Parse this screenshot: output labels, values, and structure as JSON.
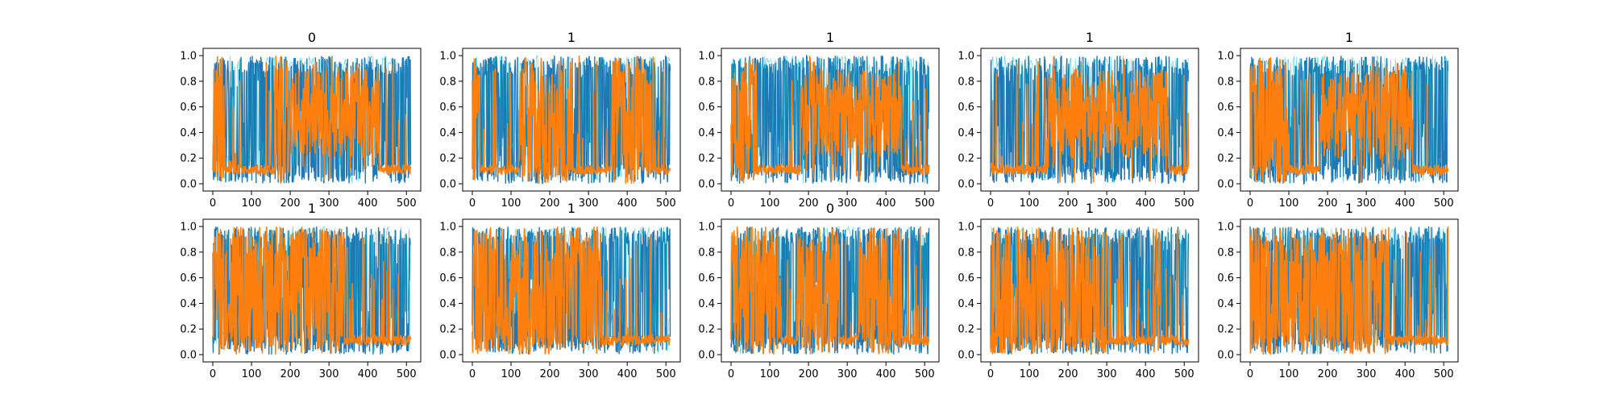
{
  "chart_data": [
    {
      "type": "line",
      "title": "0",
      "xlim": [
        0,
        512
      ],
      "ylim": [
        0,
        1
      ],
      "xticks": [
        "0",
        "100",
        "200",
        "300",
        "400",
        "500"
      ],
      "yticks": [
        "0.0",
        "0.2",
        "0.4",
        "0.6",
        "0.8",
        "1.0"
      ],
      "series": [
        {
          "color": "#1f77b4",
          "pattern": "dense_full_range"
        },
        {
          "color": "#17becf",
          "pattern": "dense_full_range"
        },
        {
          "color": "#ff7f0e",
          "pattern": "segments",
          "segments": [
            [
              0,
              30,
              "high"
            ],
            [
              30,
              160,
              "low"
            ],
            [
              160,
              200,
              "high"
            ],
            [
              200,
              430,
              "mid"
            ],
            [
              430,
              512,
              "low"
            ]
          ]
        }
      ]
    },
    {
      "type": "line",
      "title": "1",
      "xlim": [
        0,
        512
      ],
      "ylim": [
        0,
        1
      ],
      "xticks": [
        "0",
        "100",
        "200",
        "300",
        "400",
        "500"
      ],
      "yticks": [
        "0.0",
        "0.2",
        "0.4",
        "0.6",
        "0.8",
        "1.0"
      ],
      "series": [
        {
          "color": "#1f77b4",
          "pattern": "dense_full_range"
        },
        {
          "color": "#17becf",
          "pattern": "dense_full_range"
        },
        {
          "color": "#ff7f0e",
          "pattern": "segments",
          "segments": [
            [
              0,
              20,
              "high"
            ],
            [
              20,
              120,
              "low"
            ],
            [
              120,
              260,
              "high"
            ],
            [
              260,
              300,
              "low"
            ],
            [
              300,
              360,
              "low"
            ],
            [
              360,
              460,
              "high"
            ],
            [
              460,
              512,
              "low"
            ]
          ]
        }
      ]
    },
    {
      "type": "line",
      "title": "1",
      "xlim": [
        0,
        512
      ],
      "ylim": [
        0,
        1
      ],
      "xticks": [
        "0",
        "100",
        "200",
        "300",
        "400",
        "500"
      ],
      "yticks": [
        "0.0",
        "0.2",
        "0.4",
        "0.6",
        "0.8",
        "1.0"
      ],
      "series": [
        {
          "color": "#1f77b4",
          "pattern": "dense_full_range"
        },
        {
          "color": "#17becf",
          "pattern": "dense_full_range"
        },
        {
          "color": "#ff7f0e",
          "pattern": "segments",
          "segments": [
            [
              0,
              60,
              "high"
            ],
            [
              60,
              180,
              "low"
            ],
            [
              180,
              440,
              "mid"
            ],
            [
              440,
              512,
              "low"
            ]
          ]
        }
      ]
    },
    {
      "type": "line",
      "title": "1",
      "xlim": [
        0,
        512
      ],
      "ylim": [
        0,
        1
      ],
      "xticks": [
        "0",
        "100",
        "200",
        "300",
        "400",
        "500"
      ],
      "yticks": [
        "0.0",
        "0.2",
        "0.4",
        "0.6",
        "0.8",
        "1.0"
      ],
      "series": [
        {
          "color": "#1f77b4",
          "pattern": "dense_full_range"
        },
        {
          "color": "#17becf",
          "pattern": "dense_full_range"
        },
        {
          "color": "#ff7f0e",
          "pattern": "segments",
          "segments": [
            [
              0,
              150,
              "low"
            ],
            [
              150,
              460,
              "mid"
            ],
            [
              460,
              512,
              "low"
            ]
          ]
        }
      ]
    },
    {
      "type": "line",
      "title": "1",
      "xlim": [
        0,
        512
      ],
      "ylim": [
        0,
        1
      ],
      "xticks": [
        "0",
        "100",
        "200",
        "300",
        "400",
        "500"
      ],
      "yticks": [
        "0.0",
        "0.2",
        "0.4",
        "0.6",
        "0.8",
        "1.0"
      ],
      "series": [
        {
          "color": "#1f77b4",
          "pattern": "dense_full_range"
        },
        {
          "color": "#17becf",
          "pattern": "dense_full_range"
        },
        {
          "color": "#ff7f0e",
          "pattern": "segments",
          "segments": [
            [
              0,
              100,
              "high"
            ],
            [
              100,
              180,
              "low"
            ],
            [
              180,
              420,
              "mid"
            ],
            [
              420,
              512,
              "low"
            ]
          ]
        }
      ]
    },
    {
      "type": "line",
      "title": "1",
      "xlim": [
        0,
        512
      ],
      "ylim": [
        0,
        1
      ],
      "xticks": [
        "0",
        "100",
        "200",
        "300",
        "400",
        "500"
      ],
      "yticks": [
        "0.0",
        "0.2",
        "0.4",
        "0.6",
        "0.8",
        "1.0"
      ],
      "series": [
        {
          "color": "#1f77b4",
          "pattern": "dense_full_range"
        },
        {
          "color": "#17becf",
          "pattern": "dense_full_range"
        },
        {
          "color": "#ff7f0e",
          "pattern": "segments",
          "segments": [
            [
              0,
              340,
              "high"
            ],
            [
              340,
              512,
              "low"
            ]
          ]
        }
      ]
    },
    {
      "type": "line",
      "title": "1",
      "xlim": [
        0,
        512
      ],
      "ylim": [
        0,
        1
      ],
      "xticks": [
        "0",
        "100",
        "200",
        "300",
        "400",
        "500"
      ],
      "yticks": [
        "0.0",
        "0.2",
        "0.4",
        "0.6",
        "0.8",
        "1.0"
      ],
      "series": [
        {
          "color": "#1f77b4",
          "pattern": "dense_full_range"
        },
        {
          "color": "#17becf",
          "pattern": "dense_full_range"
        },
        {
          "color": "#ff7f0e",
          "pattern": "segments",
          "segments": [
            [
              0,
              330,
              "high"
            ],
            [
              330,
              512,
              "low"
            ]
          ]
        }
      ]
    },
    {
      "type": "line",
      "title": "0",
      "xlim": [
        0,
        512
      ],
      "ylim": [
        0,
        1
      ],
      "xticks": [
        "0",
        "100",
        "200",
        "300",
        "400",
        "500"
      ],
      "yticks": [
        "0.0",
        "0.2",
        "0.4",
        "0.6",
        "0.8",
        "1.0"
      ],
      "series": [
        {
          "color": "#1f77b4",
          "pattern": "dense_full_range"
        },
        {
          "color": "#17becf",
          "pattern": "dense_full_range"
        },
        {
          "color": "#ff7f0e",
          "pattern": "segments",
          "segments": [
            [
              0,
              130,
              "high"
            ],
            [
              130,
              170,
              "low"
            ],
            [
              170,
              280,
              "high"
            ],
            [
              280,
              330,
              "low"
            ],
            [
              330,
              440,
              "high"
            ],
            [
              440,
              512,
              "low"
            ]
          ]
        }
      ]
    },
    {
      "type": "line",
      "title": "1",
      "xlim": [
        0,
        512
      ],
      "ylim": [
        0,
        1
      ],
      "xticks": [
        "0",
        "100",
        "200",
        "300",
        "400",
        "500"
      ],
      "yticks": [
        "0.0",
        "0.2",
        "0.4",
        "0.6",
        "0.8",
        "1.0"
      ],
      "series": [
        {
          "color": "#1f77b4",
          "pattern": "dense_full_range"
        },
        {
          "color": "#17becf",
          "pattern": "dense_full_range"
        },
        {
          "color": "#ff7f0e",
          "pattern": "segments",
          "segments": [
            [
              0,
              300,
              "high"
            ],
            [
              300,
              420,
              "low"
            ],
            [
              420,
              440,
              "high"
            ],
            [
              440,
              512,
              "low"
            ]
          ]
        }
      ]
    },
    {
      "type": "line",
      "title": "1",
      "xlim": [
        0,
        512
      ],
      "ylim": [
        0,
        1
      ],
      "xticks": [
        "0",
        "100",
        "200",
        "300",
        "400",
        "500"
      ],
      "yticks": [
        "0.0",
        "0.2",
        "0.4",
        "0.6",
        "0.8",
        "1.0"
      ],
      "series": [
        {
          "color": "#1f77b4",
          "pattern": "dense_full_range"
        },
        {
          "color": "#17becf",
          "pattern": "dense_full_range"
        },
        {
          "color": "#ff7f0e",
          "pattern": "segments",
          "segments": [
            [
              0,
              360,
              "high"
            ],
            [
              360,
              512,
              "low"
            ]
          ]
        }
      ]
    }
  ]
}
